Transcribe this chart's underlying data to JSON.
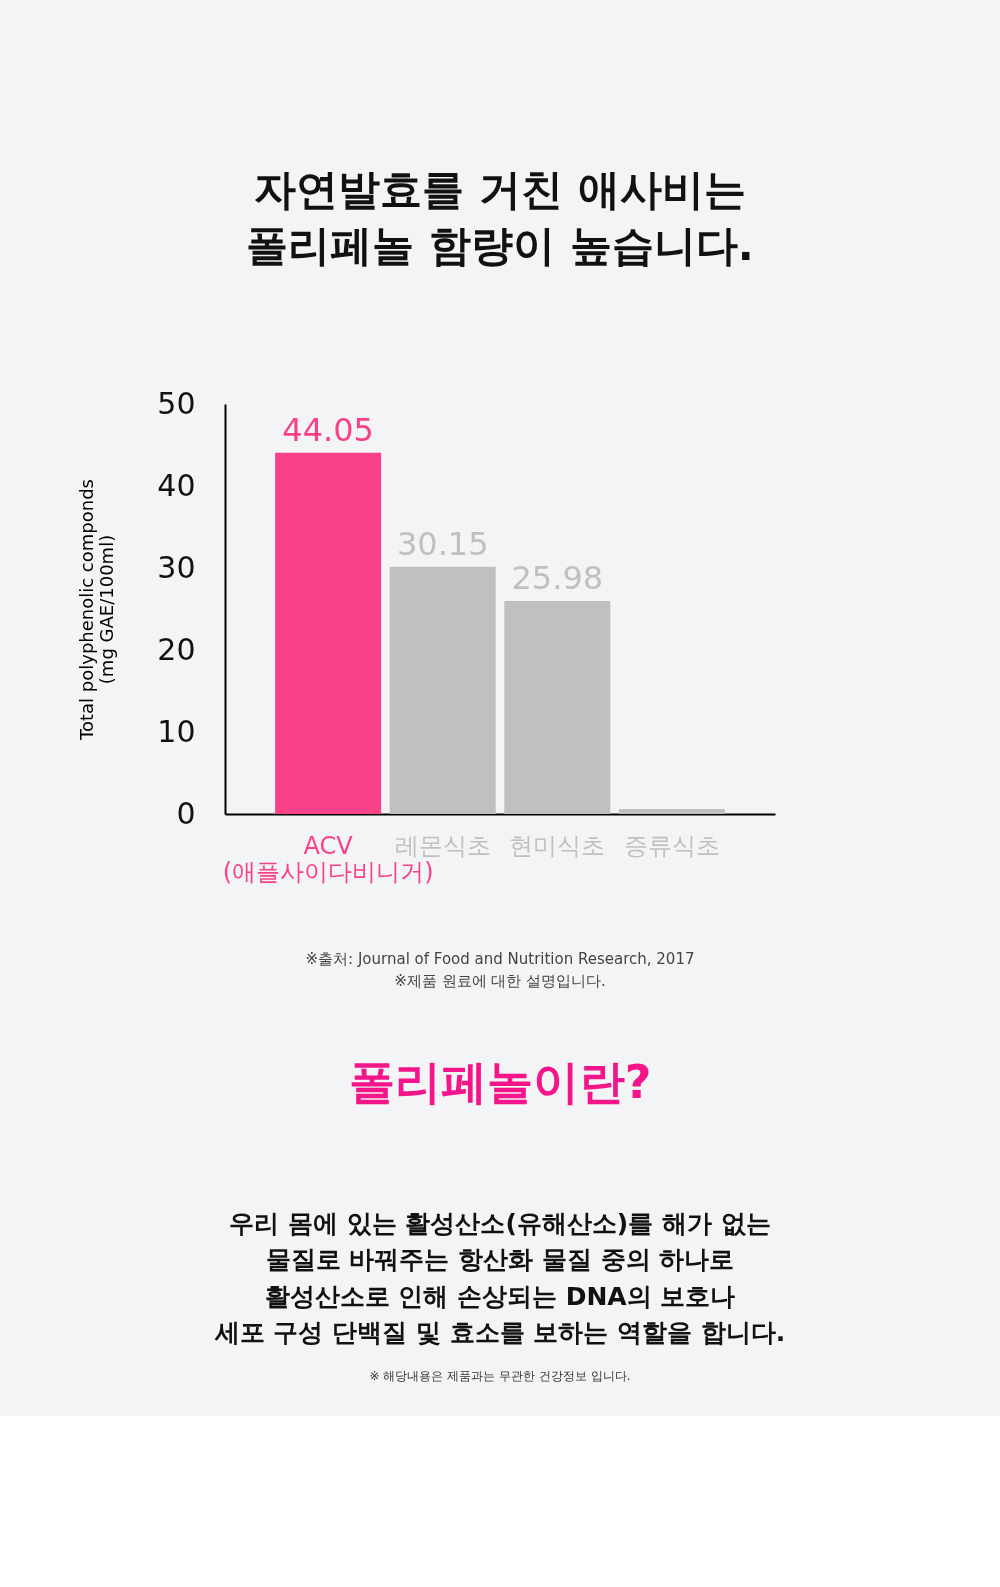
{
  "chart_data": {
    "type": "bar",
    "title": "자연발효를 거친 애사비는\n폴리페놀 함량이 높습니다.",
    "ylabel": "Total polyphenolic componds\n(mg GAE/100ml)",
    "categories": [
      "ACV\n(애플사이다비니거)",
      "레몬식초",
      "현미식초",
      "증류식초"
    ],
    "values": [
      44.05,
      30.15,
      25.98,
      0.6
    ],
    "colors": [
      "#f94189",
      "#c0c0c0",
      "#c0c0c0",
      "#c0c0c0"
    ],
    "value_labels": [
      "44.05",
      "30.15",
      "25.98",
      null
    ],
    "ylim": [
      0,
      50
    ],
    "yticks": [
      0,
      10,
      20,
      30,
      40,
      50
    ],
    "grid": false,
    "annotations": [
      "※출처:  Journal of Food and Nutrition Research, 2017\n※제품 원료에 대한 설명입니다.",
      "폴리페놀이란?",
      "우리 몸에 있는 활성산소(유해산소)를  해가 없는\n물질로 바꿔주는 항산화 물질 중의 하나로\n활성산소로 인해  손상되는 DNA의 보호나\n세포 구성 단백질 및 효소를 보하는 역할을 합니다.",
      "※ 해당내용은 제품과는 무관한 건강정보 입니다."
    ]
  }
}
